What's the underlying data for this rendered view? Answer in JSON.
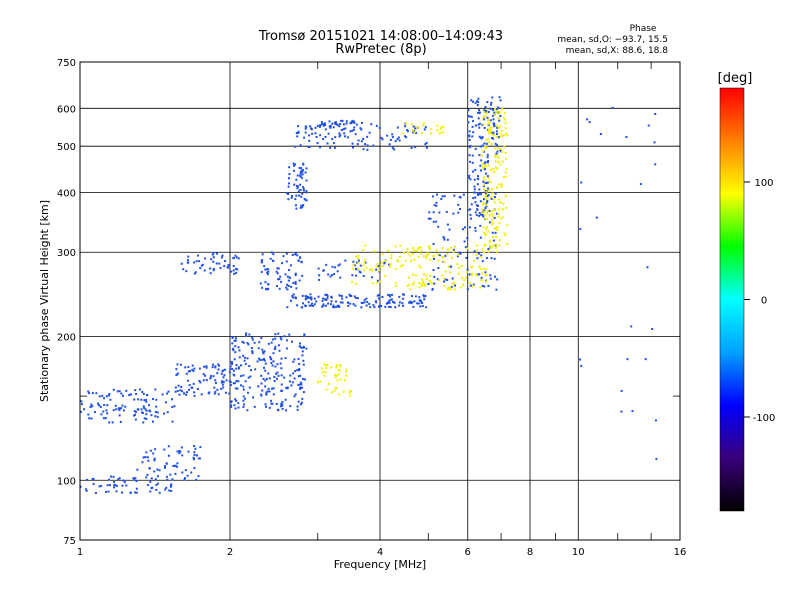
{
  "chart_data": {
    "type": "scatter",
    "title": "Tromsø 20151021 14:08:00–14:09:43",
    "subtitle": "RwPretec (8p)",
    "xlabel": "Frequency [MHz]",
    "ylabel": "Stationary phase Virtual Height [km]",
    "x_scale": "log",
    "y_scale": "log",
    "xlim": [
      1,
      16
    ],
    "ylim": [
      75,
      750
    ],
    "x_ticks": [
      1,
      2,
      4,
      6,
      8,
      10,
      16
    ],
    "y_ticks": [
      75,
      100,
      200,
      300,
      400,
      500,
      600,
      750
    ],
    "grid_x": [
      2,
      4,
      6,
      8,
      10
    ],
    "grid_y": [
      100,
      200,
      300,
      400,
      500,
      600
    ],
    "minor_x": [
      3,
      5,
      7,
      9,
      12,
      14
    ],
    "minor_y": [
      150
    ],
    "phase_info": {
      "title": "Phase",
      "o_line": "mean, sd,O: −93.7, 15.5",
      "x_line": "mean, sd,X:  88.6, 18.8"
    },
    "colorbar": {
      "label": "[deg]",
      "range": [
        -180,
        180
      ],
      "ticks": [
        100,
        0,
        -100
      ],
      "stops": [
        "#000000",
        "#3a007a",
        "#0000ff",
        "#00a0ff",
        "#00ffff",
        "#00ff00",
        "#ffff00",
        "#ff8000",
        "#ff0000"
      ]
    },
    "series": [
      {
        "mode": "O",
        "mean_phase": -93.7,
        "color": "#1f4fe6",
        "segments": [
          {
            "x_range": [
              1.0,
              1.55
            ],
            "y_range": [
              132,
              155
            ],
            "n": 110
          },
          {
            "x_range": [
              1.55,
              2.05
            ],
            "y_range": [
              150,
              175
            ],
            "n": 90
          },
          {
            "x_range": [
              1.0,
              1.55
            ],
            "y_range": [
              94,
              102
            ],
            "n": 60
          },
          {
            "x_range": [
              1.3,
              1.75
            ],
            "y_range": [
              100,
              118
            ],
            "n": 60
          },
          {
            "x_range": [
              1.6,
              2.1
            ],
            "y_range": [
              270,
              300
            ],
            "n": 50
          },
          {
            "x_range": [
              2.0,
              2.85
            ],
            "y_range": [
              140,
              205
            ],
            "n": 230
          },
          {
            "x_range": [
              2.3,
              2.8
            ],
            "y_range": [
              250,
              300
            ],
            "n": 70
          },
          {
            "x_range": [
              2.6,
              2.85
            ],
            "y_range": [
              370,
              470
            ],
            "n": 60
          },
          {
            "x_range": [
              2.6,
              5.0
            ],
            "y_range": [
              230,
              245
            ],
            "n": 150
          },
          {
            "x_range": [
              3.0,
              4.2
            ],
            "y_range": [
              260,
              290
            ],
            "n": 40
          },
          {
            "x_range": [
              2.7,
              5.0
            ],
            "y_range": [
              490,
              560
            ],
            "n": 100
          },
          {
            "x_range": [
              3.0,
              3.7
            ],
            "y_range": [
              540,
              565
            ],
            "n": 40
          },
          {
            "x_range": [
              5.0,
              6.9
            ],
            "y_range": [
              250,
              400
            ],
            "n": 120
          },
          {
            "x_range": [
              6.0,
              6.6
            ],
            "y_range": [
              340,
              630
            ],
            "n": 120
          },
          {
            "x_range": [
              6.6,
              7.0
            ],
            "y_range": [
              480,
              640
            ],
            "n": 40
          },
          {
            "x_range": [
              10.0,
              14.5
            ],
            "y_range": [
              110,
              650
            ],
            "n": 25
          }
        ]
      },
      {
        "mode": "X",
        "mean_phase": 88.6,
        "color": "#f0f000",
        "segments": [
          {
            "x_range": [
              3.0,
              3.5
            ],
            "y_range": [
              150,
              175
            ],
            "n": 40
          },
          {
            "x_range": [
              3.5,
              5.0
            ],
            "y_range": [
              255,
              310
            ],
            "n": 60
          },
          {
            "x_range": [
              4.5,
              6.6
            ],
            "y_range": [
              250,
              310
            ],
            "n": 110
          },
          {
            "x_range": [
              6.4,
              7.2
            ],
            "y_range": [
              300,
              600
            ],
            "n": 180
          },
          {
            "x_range": [
              4.4,
              5.4
            ],
            "y_range": [
              530,
              560
            ],
            "n": 20
          }
        ]
      }
    ]
  }
}
